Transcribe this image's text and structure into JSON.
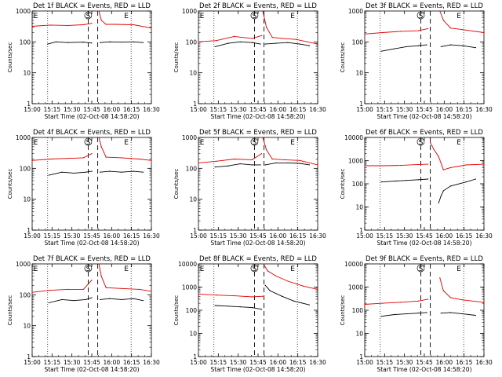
{
  "window": {
    "background": "#ffffff"
  },
  "colors": {
    "events": "#000000",
    "lld": "#e00000",
    "axes": "#000000"
  },
  "chart_data": [
    {
      "type": "line",
      "title": "Det 1f BLACK = Events, RED = LLD",
      "xlabel": "Start Time (02-Oct-08 14:58:20)",
      "ylabel": "Counts/sec",
      "xticks": [
        "15:00",
        "15:15",
        "15:30",
        "15:45",
        "16:00",
        "16:15",
        "16:30"
      ],
      "yticks": [
        "1",
        "10",
        "100",
        "1000"
      ],
      "ylim": [
        1,
        1000
      ],
      "ylog": true,
      "markers": [
        "E",
        "S",
        "E"
      ],
      "series": [
        {
          "name": "Events",
          "color": "#000000",
          "segments": [
            {
              "x": [
                0.13,
                0.2,
                0.3,
                0.43,
                0.5
              ],
              "y": [
                85,
                100,
                95,
                98,
                92
              ]
            },
            {
              "x": [
                0.57,
                0.65,
                0.75,
                0.85,
                0.93
              ],
              "y": [
                95,
                100,
                98,
                100,
                95
              ]
            }
          ]
        },
        {
          "name": "LLD",
          "color": "#e00000",
          "segments": [
            {
              "x": [
                0.0,
                0.15,
                0.3,
                0.43,
                0.5
              ],
              "y": [
                320,
                350,
                340,
                360,
                400
              ]
            },
            {
              "x": [
                0.56,
                0.58,
                0.62,
                0.7,
                0.85,
                1.0
              ],
              "y": [
                1000,
                500,
                370,
                370,
                360,
                280
              ]
            }
          ]
        }
      ]
    },
    {
      "type": "line",
      "title": "Det 2f BLACK = Events, RED = LLD",
      "xlabel": "Start Time (02-Oct-08 14:58:20)",
      "ylabel": "Counts/sec",
      "xticks": [
        "15:00",
        "15:15",
        "15:30",
        "15:45",
        "16:00",
        "16:15",
        "16:30"
      ],
      "yticks": [
        "1",
        "10",
        "100",
        "1000"
      ],
      "ylim": [
        1,
        1000
      ],
      "ylog": true,
      "markers": [
        "E",
        "S",
        "E"
      ],
      "series": [
        {
          "name": "Events",
          "color": "#000000",
          "segments": [
            {
              "x": [
                0.14,
                0.25,
                0.35,
                0.45,
                0.52
              ],
              "y": [
                70,
                90,
                100,
                95,
                85
              ]
            },
            {
              "x": [
                0.56,
                0.65,
                0.75,
                0.85,
                0.93
              ],
              "y": [
                85,
                90,
                95,
                85,
                75
              ]
            }
          ]
        },
        {
          "name": "LLD",
          "color": "#e00000",
          "segments": [
            {
              "x": [
                0.0,
                0.15,
                0.3,
                0.45,
                0.53
              ],
              "y": [
                100,
                110,
                150,
                130,
                160
              ]
            },
            {
              "x": [
                0.54,
                0.57,
                0.62,
                0.7,
                0.82,
                1.0
              ],
              "y": [
                1000,
                300,
                140,
                130,
                120,
                85
              ]
            }
          ]
        }
      ]
    },
    {
      "type": "line",
      "title": "Det 3f BLACK = Events, RED = LLD",
      "xlabel": "Start Time (02-Oct-08 14:58:20)",
      "ylabel": "Counts/sec",
      "xticks": [
        "15:00",
        "15:15",
        "15:30",
        "15:45",
        "16:00",
        "16:15",
        "16:30"
      ],
      "yticks": [
        "1",
        "10",
        "100",
        "1000"
      ],
      "ylim": [
        1,
        1000
      ],
      "ylog": true,
      "markers": [
        "S",
        "E"
      ],
      "series": [
        {
          "name": "Events",
          "color": "#000000",
          "segments": [
            {
              "x": [
                0.14,
                0.25,
                0.35,
                0.45,
                0.52
              ],
              "y": [
                50,
                60,
                70,
                75,
                80
              ]
            },
            {
              "x": [
                0.64,
                0.72,
                0.82,
                0.93
              ],
              "y": [
                70,
                80,
                75,
                65
              ]
            }
          ]
        },
        {
          "name": "LLD",
          "color": "#e00000",
          "segments": [
            {
              "x": [
                0.0,
                0.15,
                0.3,
                0.45,
                0.53
              ],
              "y": [
                180,
                200,
                220,
                230,
                270
              ]
            },
            {
              "x": [
                0.63,
                0.66,
                0.72,
                0.82,
                1.0
              ],
              "y": [
                1000,
                500,
                280,
                250,
                200
              ]
            }
          ]
        }
      ]
    },
    {
      "type": "line",
      "title": "Det 4f BLACK = Events, RED = LLD",
      "xlabel": "Start Time (02-Oct-08 14:58:20)",
      "ylabel": "Counts/sec",
      "xticks": [
        "15:00",
        "15:15",
        "15:30",
        "15:45",
        "16:00",
        "16:15",
        "16:30"
      ],
      "yticks": [
        "1",
        "10",
        "100",
        "1000"
      ],
      "ylim": [
        1,
        1000
      ],
      "ylog": true,
      "markers": [
        "E",
        "S",
        "E"
      ],
      "series": [
        {
          "name": "Events",
          "color": "#000000",
          "segments": [
            {
              "x": [
                0.14,
                0.25,
                0.35,
                0.45,
                0.5
              ],
              "y": [
                60,
                75,
                70,
                75,
                80
              ]
            },
            {
              "x": [
                0.57,
                0.65,
                0.75,
                0.85,
                0.93
              ],
              "y": [
                75,
                80,
                75,
                80,
                75
              ]
            }
          ]
        },
        {
          "name": "LLD",
          "color": "#e00000",
          "segments": [
            {
              "x": [
                0.0,
                0.15,
                0.3,
                0.43,
                0.5
              ],
              "y": [
                180,
                200,
                210,
                220,
                300
              ]
            },
            {
              "x": [
                0.56,
                0.58,
                0.62,
                0.75,
                0.9,
                1.0
              ],
              "y": [
                1000,
                500,
                230,
                220,
                200,
                180
              ]
            }
          ]
        }
      ]
    },
    {
      "type": "line",
      "title": "Det 5f BLACK = Events, RED = LLD",
      "xlabel": "Start Time (02-Oct-08 14:58:20)",
      "ylabel": "Counts/sec",
      "xticks": [
        "15:00",
        "15:15",
        "15:30",
        "15:45",
        "16:00",
        "16:15",
        "16:30"
      ],
      "yticks": [
        "1",
        "10",
        "100",
        "1000"
      ],
      "ylim": [
        1,
        1000
      ],
      "ylog": true,
      "markers": [
        "E",
        "S",
        "E"
      ],
      "series": [
        {
          "name": "Events",
          "color": "#000000",
          "segments": [
            {
              "x": [
                0.14,
                0.25,
                0.35,
                0.45,
                0.52
              ],
              "y": [
                110,
                120,
                140,
                130,
                130
              ]
            },
            {
              "x": [
                0.56,
                0.65,
                0.75,
                0.85,
                0.93
              ],
              "y": [
                130,
                150,
                150,
                145,
                130
              ]
            }
          ]
        },
        {
          "name": "LLD",
          "color": "#e00000",
          "segments": [
            {
              "x": [
                0.0,
                0.15,
                0.3,
                0.45,
                0.53
              ],
              "y": [
                150,
                170,
                200,
                190,
                300
              ]
            },
            {
              "x": [
                0.54,
                0.57,
                0.62,
                0.72,
                0.85,
                1.0
              ],
              "y": [
                1000,
                400,
                200,
                190,
                180,
                130
              ]
            }
          ]
        }
      ]
    },
    {
      "type": "line",
      "title": "Det 6f BLACK = Events, RED = LLD",
      "xlabel": "Start Time (02-Oct-08 14:58:20)",
      "ylabel": "Counts/sec",
      "xticks": [
        "15:00",
        "15:15",
        "15:30",
        "15:45",
        "16:00",
        "16:15",
        "16:30"
      ],
      "yticks": [
        "1",
        "10",
        "100",
        "1000",
        "10000"
      ],
      "ylim": [
        1,
        10000
      ],
      "ylog": true,
      "markers": [
        "S",
        "E"
      ],
      "series": [
        {
          "name": "Events",
          "color": "#000000",
          "segments": [
            {
              "x": [
                0.14,
                0.25,
                0.35,
                0.45,
                0.53
              ],
              "y": [
                120,
                130,
                140,
                150,
                160
              ]
            },
            {
              "x": [
                0.62,
                0.64,
                0.66,
                0.72,
                0.85,
                0.93
              ],
              "y": [
                15,
                30,
                50,
                80,
                120,
                160
              ]
            }
          ]
        },
        {
          "name": "LLD",
          "color": "#e00000",
          "segments": [
            {
              "x": [
                0.0,
                0.15,
                0.3,
                0.45,
                0.53
              ],
              "y": [
                600,
                600,
                620,
                680,
                700
              ]
            },
            {
              "x": [
                0.55,
                0.58,
                0.62,
                0.66,
                0.72,
                0.85,
                1.0
              ],
              "y": [
                6000,
                3000,
                1500,
                400,
                500,
                650,
                700
              ]
            }
          ]
        }
      ]
    },
    {
      "type": "line",
      "title": "Det 7f BLACK = Events, RED = LLD",
      "xlabel": "Start Time (02-Oct-08 14:58:20)",
      "ylabel": "Counts/sec",
      "xticks": [
        "15:00",
        "15:15",
        "15:30",
        "15:45",
        "16:00",
        "16:15",
        "16:30"
      ],
      "yticks": [
        "1",
        "10",
        "100",
        "1000"
      ],
      "ylim": [
        1,
        1000
      ],
      "ylog": true,
      "markers": [
        "E",
        "S",
        "E"
      ],
      "series": [
        {
          "name": "Events",
          "color": "#000000",
          "segments": [
            {
              "x": [
                0.14,
                0.25,
                0.35,
                0.45,
                0.5
              ],
              "y": [
                55,
                70,
                65,
                70,
                80
              ]
            },
            {
              "x": [
                0.57,
                0.65,
                0.75,
                0.85,
                0.93
              ],
              "y": [
                70,
                75,
                70,
                75,
                65
              ]
            }
          ]
        },
        {
          "name": "LLD",
          "color": "#e00000",
          "segments": [
            {
              "x": [
                0.0,
                0.15,
                0.3,
                0.43,
                0.5
              ],
              "y": [
                120,
                140,
                150,
                150,
                300
              ]
            },
            {
              "x": [
                0.56,
                0.58,
                0.62,
                0.75,
                0.9,
                1.0
              ],
              "y": [
                1000,
                400,
                170,
                160,
                150,
                130
              ]
            }
          ]
        }
      ]
    },
    {
      "type": "line",
      "title": "Det 8f BLACK = Events, RED = LLD",
      "xlabel": "Start Time (02-Oct-08 14:58:20)",
      "ylabel": "Counts/sec",
      "xticks": [
        "15:00",
        "15:15",
        "15:30",
        "15:45",
        "16:00",
        "16:15",
        "16:30"
      ],
      "yticks": [
        "1",
        "10",
        "100",
        "1000",
        "10000"
      ],
      "ylim": [
        1,
        10000
      ],
      "ylog": true,
      "markers": [
        "E",
        "S",
        "E"
      ],
      "series": [
        {
          "name": "Events",
          "color": "#000000",
          "segments": [
            {
              "x": [
                0.14,
                0.25,
                0.35,
                0.45,
                0.53
              ],
              "y": [
                160,
                150,
                140,
                130,
                110
              ]
            },
            {
              "x": [
                0.56,
                0.6,
                0.7,
                0.8,
                0.93
              ],
              "y": [
                1200,
                700,
                400,
                250,
                170
              ]
            }
          ]
        },
        {
          "name": "LLD",
          "color": "#e00000",
          "segments": [
            {
              "x": [
                0.0,
                0.15,
                0.3,
                0.45,
                0.54
              ],
              "y": [
                500,
                450,
                420,
                380,
                400
              ]
            },
            {
              "x": [
                0.55,
                0.58,
                0.65,
                0.75,
                0.88,
                1.0
              ],
              "y": [
                9000,
                5000,
                3000,
                1800,
                1100,
                800
              ]
            }
          ]
        }
      ]
    },
    {
      "type": "line",
      "title": "Det 9f BLACK = Events, RED = LLD",
      "xlabel": "Start Time (02-Oct-08 14:58:20)",
      "ylabel": "Counts/sec",
      "xticks": [
        "15:00",
        "15:15",
        "15:30",
        "15:45",
        "16:00",
        "16:15",
        "16:30"
      ],
      "yticks": [
        "1",
        "10",
        "100",
        "1000",
        "10000"
      ],
      "ylim": [
        1,
        10000
      ],
      "ylog": true,
      "markers": [
        "S",
        "E"
      ],
      "series": [
        {
          "name": "Events",
          "color": "#000000",
          "segments": [
            {
              "x": [
                0.14,
                0.25,
                0.35,
                0.45,
                0.52
              ],
              "y": [
                55,
                65,
                70,
                75,
                80
              ]
            },
            {
              "x": [
                0.64,
                0.72,
                0.82,
                0.93
              ],
              "y": [
                75,
                80,
                70,
                60
              ]
            }
          ]
        },
        {
          "name": "LLD",
          "color": "#e00000",
          "segments": [
            {
              "x": [
                0.0,
                0.15,
                0.3,
                0.45,
                0.53
              ],
              "y": [
                180,
                200,
                220,
                250,
                300
              ]
            },
            {
              "x": [
                0.63,
                0.66,
                0.72,
                0.82,
                1.0
              ],
              "y": [
                2500,
                700,
                350,
                280,
                220
              ]
            }
          ]
        }
      ]
    }
  ]
}
